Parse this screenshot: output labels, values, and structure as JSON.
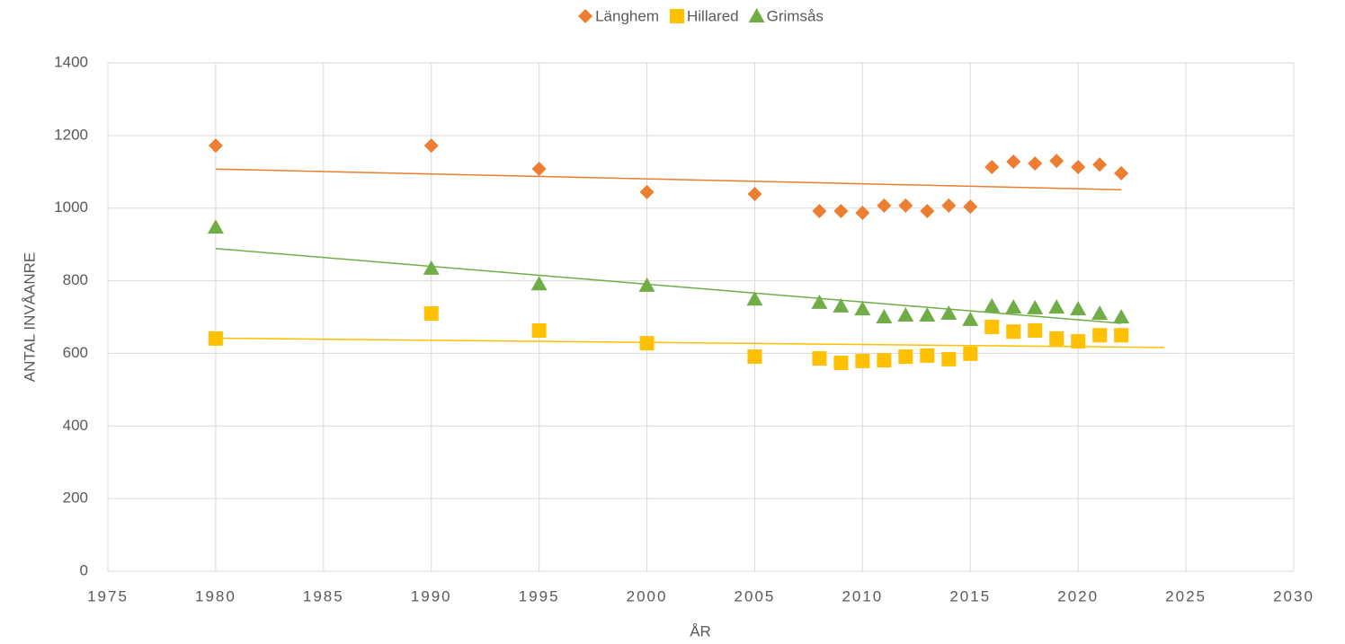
{
  "chart_data": {
    "type": "scatter",
    "x_label": "ÅR",
    "y_label": "ANTAL INVÅANRE",
    "x": [
      1980,
      1990,
      1995,
      2000,
      2005,
      2008,
      2009,
      2010,
      2011,
      2012,
      2013,
      2014,
      2015,
      2016,
      2017,
      2018,
      2019,
      2020,
      2021,
      2022
    ],
    "series": [
      {
        "name": "Länghem",
        "color": "#ed7d31",
        "marker": "diamond",
        "trendline": {
          "type": "linear",
          "forward": 0
        },
        "values": [
          1172,
          1172,
          1108,
          1044,
          1039,
          992,
          992,
          987,
          1007,
          1007,
          992,
          1007,
          1004,
          1113,
          1128,
          1123,
          1130,
          1113,
          1120,
          1096
        ]
      },
      {
        "name": "Hillared",
        "color": "#ffc000",
        "marker": "square",
        "trendline": {
          "type": "linear",
          "forward": 2
        },
        "values": [
          641,
          710,
          663,
          628,
          591,
          586,
          574,
          579,
          581,
          591,
          594,
          584,
          599,
          673,
          660,
          663,
          641,
          633,
          650,
          650
        ]
      },
      {
        "name": "Grimsås",
        "color": "#70ad47",
        "marker": "triangle",
        "trendline": {
          "type": "linear",
          "forward": 0
        },
        "values": [
          947,
          834,
          791,
          787,
          749,
          740,
          730,
          722,
          700,
          705,
          705,
          710,
          693,
          730,
          727,
          725,
          727,
          722,
          710,
          700
        ]
      }
    ],
    "xlim": [
      1975,
      2030
    ],
    "xticks": [
      1975,
      1980,
      1985,
      1990,
      1995,
      2000,
      2005,
      2010,
      2015,
      2020,
      2025,
      2030
    ],
    "ylim": [
      0,
      1400
    ],
    "yticks": [
      0,
      200,
      400,
      600,
      800,
      1000,
      1200,
      1400
    ],
    "grid": true,
    "legend": "top"
  }
}
